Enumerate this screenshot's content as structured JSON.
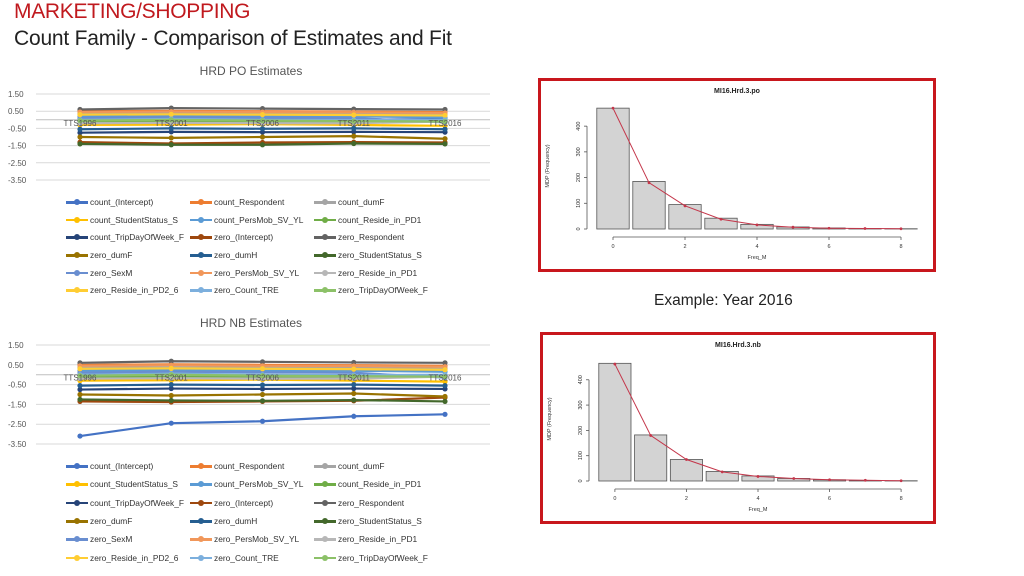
{
  "header": {
    "title": "MARKETING/SHOPPING",
    "subtitle": "Count Family - Comparison of Estimates and Fit"
  },
  "example_label": "Example: Year 2016",
  "colors": {
    "title_red": "#c0191e",
    "frame_red": "#c8171d",
    "hist_line": "#c4364a",
    "bar_fill": "#d3d3d3",
    "bar_stroke": "#555555",
    "grid": "#d9d9d9"
  },
  "chart_data": [
    {
      "type": "line",
      "title": "HRD PO Estimates",
      "categories": [
        "TTS1996",
        "TTS2001",
        "TTS2006",
        "TTS2011",
        "TTS2016"
      ],
      "ylim": [
        -3.5,
        1.5
      ],
      "yticks": [
        "1.50",
        "0.50",
        "-0.50",
        "-1.50",
        "-2.50",
        "-3.50"
      ],
      "grid": true,
      "legend_position": "bottom",
      "series": [
        {
          "name": "count_(Intercept)",
          "color": "#4472c4",
          "values": [
            0.05,
            0.0,
            0.02,
            0.0,
            0.05
          ]
        },
        {
          "name": "count_Respondent",
          "color": "#ed7d31",
          "values": [
            0.5,
            0.52,
            0.5,
            0.48,
            0.45
          ]
        },
        {
          "name": "count_dumF",
          "color": "#a5a5a5",
          "values": [
            0.35,
            0.38,
            0.36,
            0.34,
            0.3
          ]
        },
        {
          "name": "count_StudentStatus_S",
          "color": "#ffc000",
          "values": [
            -0.3,
            -0.28,
            -0.25,
            -0.3,
            -0.35
          ]
        },
        {
          "name": "count_PersMob_SV_YL",
          "color": "#5b9bd5",
          "values": [
            0.2,
            0.22,
            0.2,
            0.2,
            0.15
          ]
        },
        {
          "name": "count_Reside_in_PD1",
          "color": "#70ad47",
          "values": [
            -0.1,
            -0.12,
            -0.1,
            -0.15,
            -0.05
          ]
        },
        {
          "name": "count_TripDayOfWeek_F",
          "color": "#264478",
          "values": [
            -0.75,
            -0.7,
            -0.72,
            -0.7,
            -0.72
          ]
        },
        {
          "name": "zero_(Intercept)",
          "color": "#9e480e",
          "values": [
            -1.3,
            -1.38,
            -1.32,
            -1.3,
            -1.32
          ]
        },
        {
          "name": "zero_Respondent",
          "color": "#636363",
          "values": [
            0.6,
            0.68,
            0.65,
            0.62,
            0.6
          ]
        },
        {
          "name": "zero_dumF",
          "color": "#997300",
          "values": [
            -1.0,
            -1.05,
            -1.0,
            -0.95,
            -1.1
          ]
        },
        {
          "name": "zero_dumH",
          "color": "#255e91",
          "values": [
            -0.55,
            -0.5,
            -0.52,
            -0.5,
            -0.55
          ]
        },
        {
          "name": "zero_StudentStatus_S",
          "color": "#43682b",
          "values": [
            -1.4,
            -1.45,
            -1.45,
            -1.38,
            -1.4
          ]
        },
        {
          "name": "zero_SexM",
          "color": "#698ed0",
          "values": [
            0.1,
            0.15,
            0.12,
            0.1,
            -0.15
          ]
        },
        {
          "name": "zero_PersMob_SV_YL",
          "color": "#f1975a",
          "values": [
            0.45,
            0.48,
            0.45,
            0.44,
            0.4
          ]
        },
        {
          "name": "zero_Reside_in_PD1",
          "color": "#b7b7b7",
          "values": [
            -0.2,
            -0.18,
            -0.2,
            -0.2,
            -0.1
          ]
        },
        {
          "name": "zero_Reside_in_PD2_6",
          "color": "#ffcd33",
          "values": [
            0.3,
            0.32,
            0.3,
            0.28,
            0.25
          ]
        },
        {
          "name": "zero_Count_TRE",
          "color": "#7cafdd",
          "values": [
            0.0,
            0.05,
            0.0,
            -0.02,
            0.0
          ]
        },
        {
          "name": "zero_TripDayOfWeek_F",
          "color": "#8cc168",
          "values": [
            -0.05,
            0.0,
            -0.05,
            -0.08,
            -0.1
          ]
        }
      ]
    },
    {
      "type": "line",
      "title": "HRD NB Estimates",
      "categories": [
        "TTS1996",
        "TTS2001",
        "TTS2006",
        "TTS2011",
        "TTS2016"
      ],
      "ylim": [
        -3.5,
        1.5
      ],
      "yticks": [
        "1.50",
        "0.50",
        "-0.50",
        "-1.50",
        "-2.50",
        "-3.50"
      ],
      "grid": true,
      "legend_position": "bottom",
      "series": [
        {
          "name": "count_(Intercept)",
          "color": "#4472c4",
          "values": [
            -3.1,
            -2.45,
            -2.35,
            -2.1,
            -2.0
          ]
        },
        {
          "name": "count_Respondent",
          "color": "#ed7d31",
          "values": [
            0.5,
            0.52,
            0.5,
            0.48,
            0.45
          ]
        },
        {
          "name": "count_dumF",
          "color": "#a5a5a5",
          "values": [
            0.35,
            0.38,
            0.36,
            0.34,
            0.3
          ]
        },
        {
          "name": "count_StudentStatus_S",
          "color": "#ffc000",
          "values": [
            -0.3,
            -0.28,
            -0.25,
            -0.3,
            -0.35
          ]
        },
        {
          "name": "count_PersMob_SV_YL",
          "color": "#5b9bd5",
          "values": [
            0.2,
            0.22,
            0.2,
            0.2,
            0.15
          ]
        },
        {
          "name": "count_Reside_in_PD1",
          "color": "#70ad47",
          "values": [
            -0.1,
            -0.12,
            -0.1,
            -0.15,
            -0.05
          ]
        },
        {
          "name": "count_TripDayOfWeek_F",
          "color": "#264478",
          "values": [
            -0.75,
            -0.7,
            -0.72,
            -0.7,
            -0.72
          ]
        },
        {
          "name": "zero_(Intercept)",
          "color": "#9e480e",
          "values": [
            -1.35,
            -1.38,
            -1.35,
            -1.32,
            -1.15
          ]
        },
        {
          "name": "zero_Respondent",
          "color": "#636363",
          "values": [
            0.6,
            0.68,
            0.65,
            0.62,
            0.6
          ]
        },
        {
          "name": "zero_dumF",
          "color": "#997300",
          "values": [
            -1.0,
            -1.05,
            -1.0,
            -0.95,
            -1.1
          ]
        },
        {
          "name": "zero_dumH",
          "color": "#255e91",
          "values": [
            -0.55,
            -0.5,
            -0.52,
            -0.5,
            -0.55
          ]
        },
        {
          "name": "zero_StudentStatus_S",
          "color": "#43682b",
          "values": [
            -1.25,
            -1.3,
            -1.32,
            -1.28,
            -1.35
          ]
        },
        {
          "name": "zero_SexM",
          "color": "#698ed0",
          "values": [
            0.1,
            0.15,
            0.12,
            0.1,
            -0.15
          ]
        },
        {
          "name": "zero_PersMob_SV_YL",
          "color": "#f1975a",
          "values": [
            0.45,
            0.48,
            0.45,
            0.44,
            0.4
          ]
        },
        {
          "name": "zero_Reside_in_PD1",
          "color": "#b7b7b7",
          "values": [
            -0.2,
            -0.18,
            -0.2,
            -0.2,
            -0.1
          ]
        },
        {
          "name": "zero_Reside_in_PD2_6",
          "color": "#ffcd33",
          "values": [
            0.3,
            0.32,
            0.3,
            0.28,
            0.25
          ]
        },
        {
          "name": "zero_Count_TRE",
          "color": "#7cafdd",
          "values": [
            0.0,
            0.05,
            0.0,
            -0.02,
            0.0
          ]
        },
        {
          "name": "zero_TripDayOfWeek_F",
          "color": "#8cc168",
          "values": [
            -0.05,
            0.0,
            -0.05,
            -0.08,
            -0.1
          ]
        }
      ]
    },
    {
      "type": "bar",
      "title": "MI16.Hrd.3.po",
      "xlabel": "Freq_M",
      "ylabel": "MDP (Frequency)",
      "categories": [
        0,
        1,
        2,
        3,
        4,
        5,
        6,
        7,
        8
      ],
      "values": [
        470,
        185,
        95,
        42,
        18,
        8,
        4,
        2,
        1
      ],
      "fitted": [
        470,
        180,
        90,
        38,
        16,
        7,
        3,
        2,
        1
      ],
      "xticks": [
        0,
        2,
        4,
        6,
        8
      ],
      "yticks": [
        0,
        100,
        200,
        300,
        400
      ],
      "ylim": [
        0,
        490
      ]
    },
    {
      "type": "bar",
      "title": "MI16.Hrd.3.nb",
      "xlabel": "Freq_M",
      "ylabel": "MDP (Frequency)",
      "categories": [
        0,
        1,
        2,
        3,
        4,
        5,
        6,
        7,
        8
      ],
      "values": [
        465,
        182,
        85,
        38,
        20,
        10,
        5,
        2,
        1
      ],
      "fitted": [
        462,
        180,
        85,
        36,
        18,
        10,
        5,
        3,
        1
      ],
      "xticks": [
        0,
        2,
        4,
        6,
        8
      ],
      "yticks": [
        0,
        100,
        200,
        300,
        400
      ],
      "ylim": [
        0,
        490
      ]
    }
  ]
}
